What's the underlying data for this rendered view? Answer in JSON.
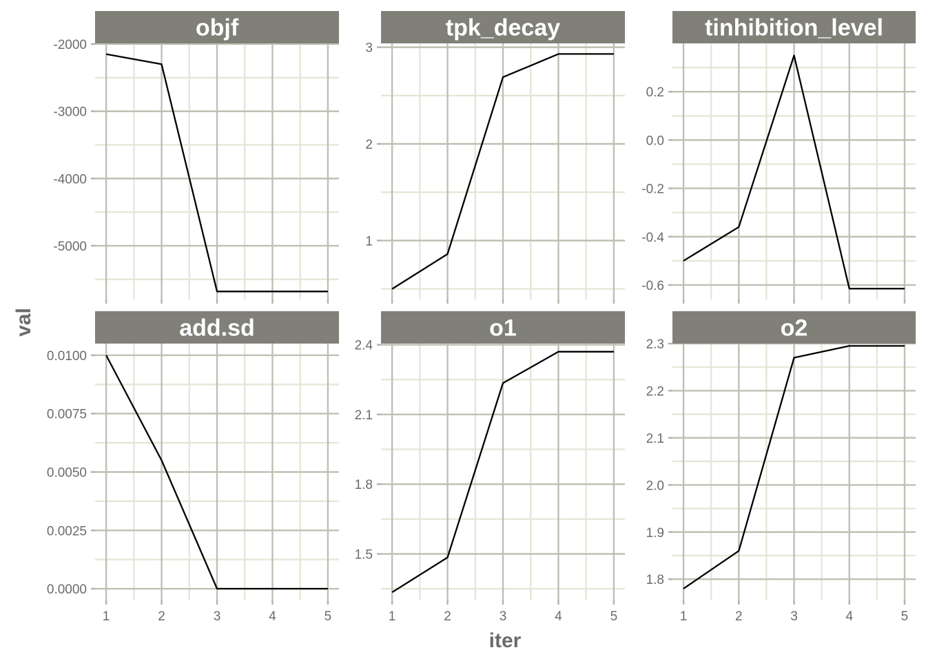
{
  "chart_data": {
    "type": "line",
    "layout": "facet-grid",
    "xlabel": "iter",
    "ylabel": "val",
    "x_ticks": [
      1,
      2,
      3,
      4,
      5
    ],
    "colors": {
      "strip_background": "#808078",
      "strip_text": "#ffffff",
      "grid_major": "#bfbfb3",
      "grid_minor": "#e6e6d8",
      "line": "#000000",
      "axis_text": "#6b6b6b"
    },
    "panels": [
      {
        "title": "objf",
        "x": [
          1,
          2,
          3,
          4,
          5
        ],
        "y": [
          -2150,
          -2300,
          -5680,
          -5680,
          -5680
        ],
        "ylim": [
          -5800,
          -1990
        ],
        "y_ticks": [
          -2000,
          -3000,
          -4000,
          -5000
        ],
        "y_tick_labels": [
          "-2000",
          "-3000",
          "-4000",
          "-5000"
        ]
      },
      {
        "title": "tpk_decay",
        "x": [
          1,
          2,
          3,
          4,
          5
        ],
        "y": [
          0.5,
          0.86,
          2.69,
          2.93,
          2.93
        ],
        "ylim": [
          0.39,
          3.04
        ],
        "y_ticks": [
          1,
          2,
          3
        ],
        "y_tick_labels": [
          "1",
          "2",
          "3"
        ]
      },
      {
        "title": "tinhibition_level",
        "x": [
          1,
          2,
          3,
          4,
          5
        ],
        "y": [
          -0.5,
          -0.36,
          0.35,
          -0.615,
          -0.615
        ],
        "ylim": [
          -0.66,
          0.4
        ],
        "y_ticks": [
          0.2,
          0.0,
          -0.2,
          -0.4,
          -0.6
        ],
        "y_tick_labels": [
          "0.2",
          "0.0",
          "-0.2",
          "-0.4",
          "-0.6"
        ]
      },
      {
        "title": "add.sd",
        "x": [
          1,
          2,
          3,
          4,
          5
        ],
        "y": [
          0.01,
          0.0055,
          0.0,
          0.0,
          0.0
        ],
        "ylim": [
          -0.0005,
          0.0105
        ],
        "y_ticks": [
          0.01,
          0.0075,
          0.005,
          0.0025,
          0.0
        ],
        "y_tick_labels": [
          "0.0100",
          "0.0075",
          "0.0050",
          "0.0025",
          "0.0000"
        ]
      },
      {
        "title": "o1",
        "x": [
          1,
          2,
          3,
          4,
          5
        ],
        "y": [
          1.335,
          1.485,
          2.235,
          2.37,
          2.37
        ],
        "ylim": [
          1.3,
          2.405
        ],
        "y_ticks": [
          2.4,
          2.1,
          1.8,
          1.5
        ],
        "y_tick_labels": [
          "2.4",
          "2.1",
          "1.8",
          "1.5"
        ]
      },
      {
        "title": "o2",
        "x": [
          1,
          2,
          3,
          4,
          5
        ],
        "y": [
          1.78,
          1.86,
          2.27,
          2.295,
          2.295
        ],
        "ylim": [
          1.755,
          2.3
        ],
        "y_ticks": [
          2.3,
          2.2,
          2.1,
          2.0,
          1.9,
          1.8
        ],
        "y_tick_labels": [
          "2.3",
          "2.2",
          "2.1",
          "2.0",
          "1.9",
          "1.8"
        ]
      }
    ]
  }
}
